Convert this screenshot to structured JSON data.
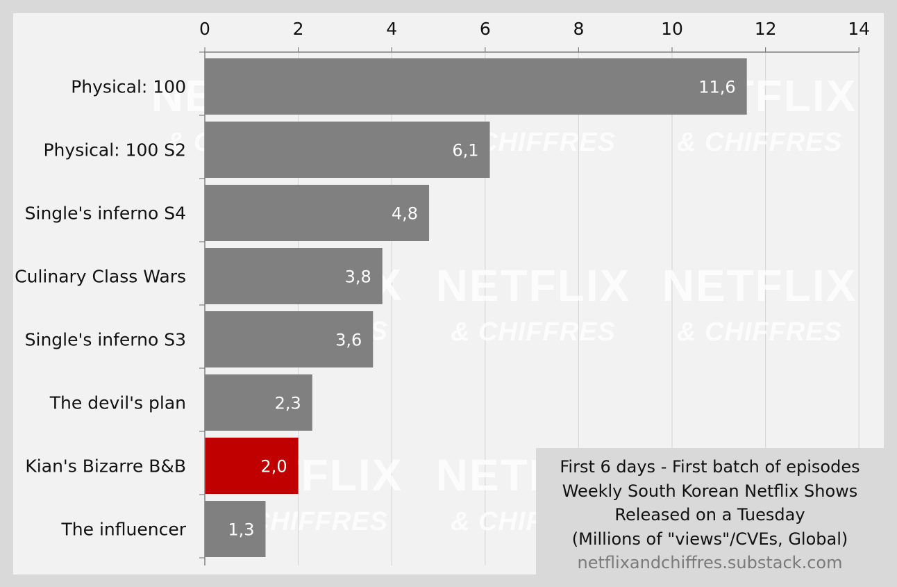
{
  "chart_data": {
    "type": "bar",
    "orientation": "horizontal",
    "categories": [
      "Physical: 100",
      "Physical: 100 S2",
      "Single's inferno S4",
      "Culinary Class Wars",
      "Single's inferno S3",
      "The devil's plan",
      "Kian's Bizarre B&B",
      "The influencer"
    ],
    "values": [
      11.6,
      6.1,
      4.8,
      3.8,
      3.6,
      2.3,
      2.0,
      1.3
    ],
    "data_labels": [
      "11,6",
      "6,1",
      "4,8",
      "3,8",
      "3,6",
      "2,3",
      "2,0",
      "1,3"
    ],
    "x_ticks": [
      "0",
      "2",
      "4",
      "6",
      "8",
      "10",
      "12",
      "14"
    ],
    "xlim": [
      0,
      14
    ],
    "x_axis_position": "top",
    "grid": true,
    "bar_color": "#808080",
    "highlight_color": "#c00000",
    "highlight_index": 6,
    "annotation_lines": [
      "First 6 days - First batch of episodes",
      "Weekly South Korean Netflix Shows",
      "Released on a Tuesday",
      "(Millions of \"views\"/CVEs, Global)"
    ],
    "source": "netflixandchiffres.substack.com"
  },
  "watermark": {
    "title": "NETFLIX",
    "subtitle": "& CHIFFRES"
  },
  "colors": {
    "page_background": "#d9d9d9",
    "plot_background": "#f2f2f2",
    "gridline": "#d9d9d9"
  }
}
